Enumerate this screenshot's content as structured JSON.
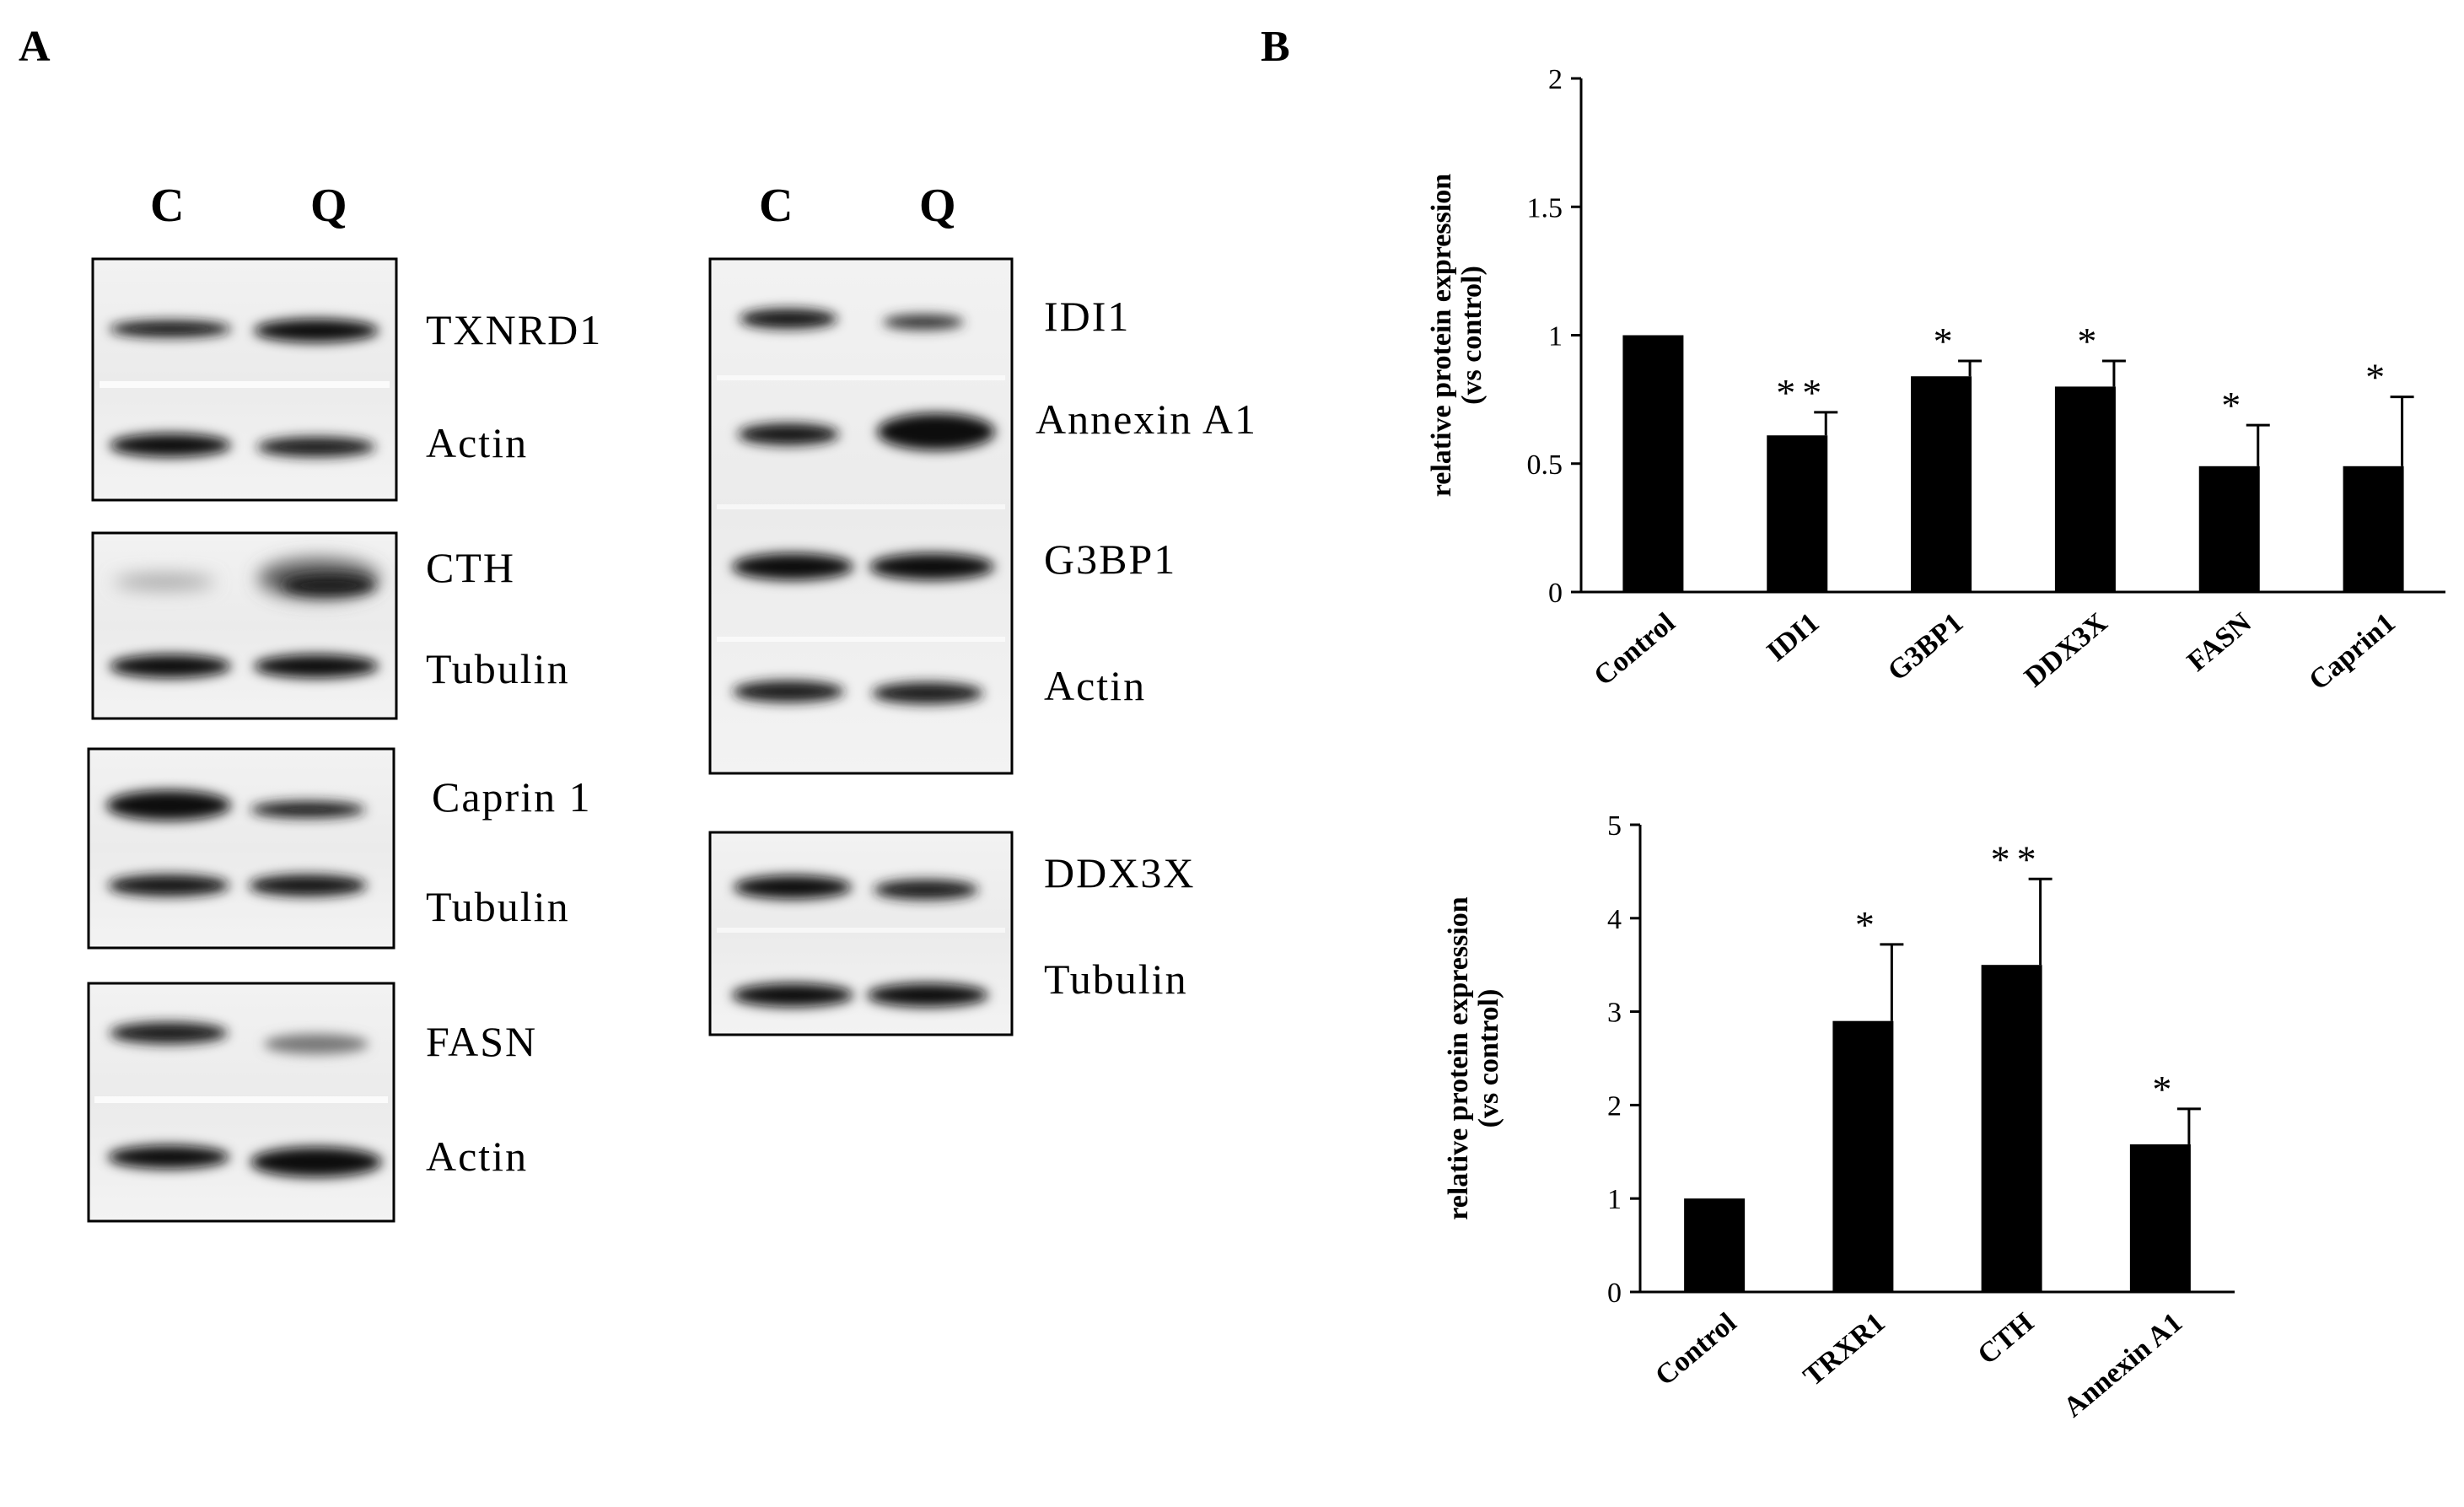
{
  "panel_a": {
    "letter": "A",
    "lane_labels": [
      "C",
      "Q"
    ],
    "blots": [
      {
        "labels": [
          "TXNRD1",
          "Actin"
        ]
      },
      {
        "labels": [
          "CTH",
          "Tubulin"
        ]
      },
      {
        "labels": [
          "Caprin 1",
          "Tubulin"
        ]
      },
      {
        "labels": [
          "FASN",
          "Actin"
        ]
      },
      {
        "labels": [
          "IDI1",
          "Annexin A1",
          "G3BP1",
          "Actin"
        ]
      },
      {
        "labels": [
          "DDX3X",
          "Tubulin"
        ]
      }
    ]
  },
  "panel_b": {
    "letter": "B"
  },
  "chart_data": [
    {
      "type": "bar",
      "categories": [
        "Control",
        "IDI1",
        "G3BP1",
        "DDX3X",
        "FASN",
        "Caprin1"
      ],
      "values": [
        1.0,
        0.61,
        0.84,
        0.8,
        0.49,
        0.49
      ],
      "errors": [
        0,
        0.09,
        0.06,
        0.1,
        0.16,
        0.27
      ],
      "significance": [
        "",
        "**",
        "*",
        "*",
        "*",
        "*"
      ],
      "ylabel_line1": "relative protein expression",
      "ylabel_line2": "(vs control)",
      "ylim": [
        0,
        2
      ],
      "yticks": [
        "0",
        "0.5",
        "1",
        "1.5",
        "2"
      ],
      "ytick_values": [
        0,
        0.5,
        1,
        1.5,
        2
      ]
    },
    {
      "type": "bar",
      "categories": [
        "Control",
        "TRXR1",
        "CTH",
        "Annexin A1"
      ],
      "values": [
        1.0,
        2.9,
        3.5,
        1.58
      ],
      "errors": [
        0,
        0.82,
        0.92,
        0.38
      ],
      "significance": [
        "",
        "*",
        "**",
        "*"
      ],
      "ylabel_line1": "relative protein expression",
      "ylabel_line2": "(vs control)",
      "ylim": [
        0,
        5
      ],
      "yticks": [
        "0",
        "1",
        "2",
        "3",
        "4",
        "5"
      ],
      "ytick_values": [
        0,
        1,
        2,
        3,
        4,
        5
      ]
    }
  ]
}
